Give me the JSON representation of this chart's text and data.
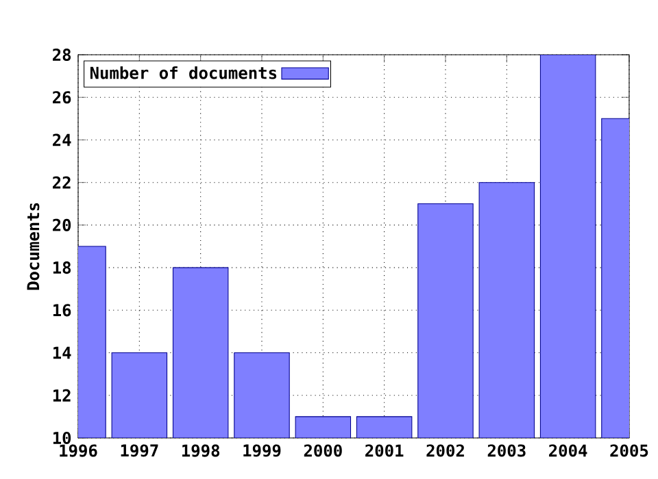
{
  "chart_data": {
    "type": "bar",
    "ylabel": "Documents",
    "x": [
      1996,
      1997,
      1998,
      1999,
      2000,
      2001,
      2002,
      2003,
      2004,
      2005
    ],
    "series": [
      {
        "name": "Number of documents",
        "color": "#7f7fff",
        "values": [
          19,
          14,
          18,
          14,
          11,
          11,
          21,
          22,
          28,
          25
        ]
      }
    ],
    "xlim": [
      1996,
      2005
    ],
    "xticks": [
      1996,
      1997,
      1998,
      1999,
      2000,
      2001,
      2002,
      2003,
      2004,
      2005
    ],
    "ylim": [
      10,
      28
    ],
    "yticks": [
      10,
      12,
      14,
      16,
      18,
      20,
      22,
      24,
      26,
      28
    ],
    "grid": true,
    "legend": "top left"
  }
}
